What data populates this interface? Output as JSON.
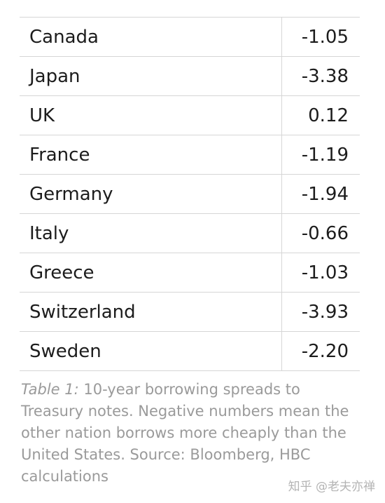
{
  "table": {
    "rows": [
      {
        "country": "Canada",
        "value": "-1.05"
      },
      {
        "country": "Japan",
        "value": "-3.38"
      },
      {
        "country": "UK",
        "value": "0.12"
      },
      {
        "country": "France",
        "value": "-1.19"
      },
      {
        "country": "Germany",
        "value": "-1.94"
      },
      {
        "country": "Italy",
        "value": "-0.66"
      },
      {
        "country": "Greece",
        "value": "-1.03"
      },
      {
        "country": "Switzerland",
        "value": "-3.93"
      },
      {
        "country": "Sweden",
        "value": "-2.20"
      }
    ]
  },
  "caption": {
    "label": "Table 1:",
    "text": " 10-year borrowing spreads to Treasury notes. Negative numbers mean the other nation borrows more cheaply than the United States. Source: Bloomberg, HBC calculations"
  },
  "watermark": "知乎 @老夫亦禅"
}
